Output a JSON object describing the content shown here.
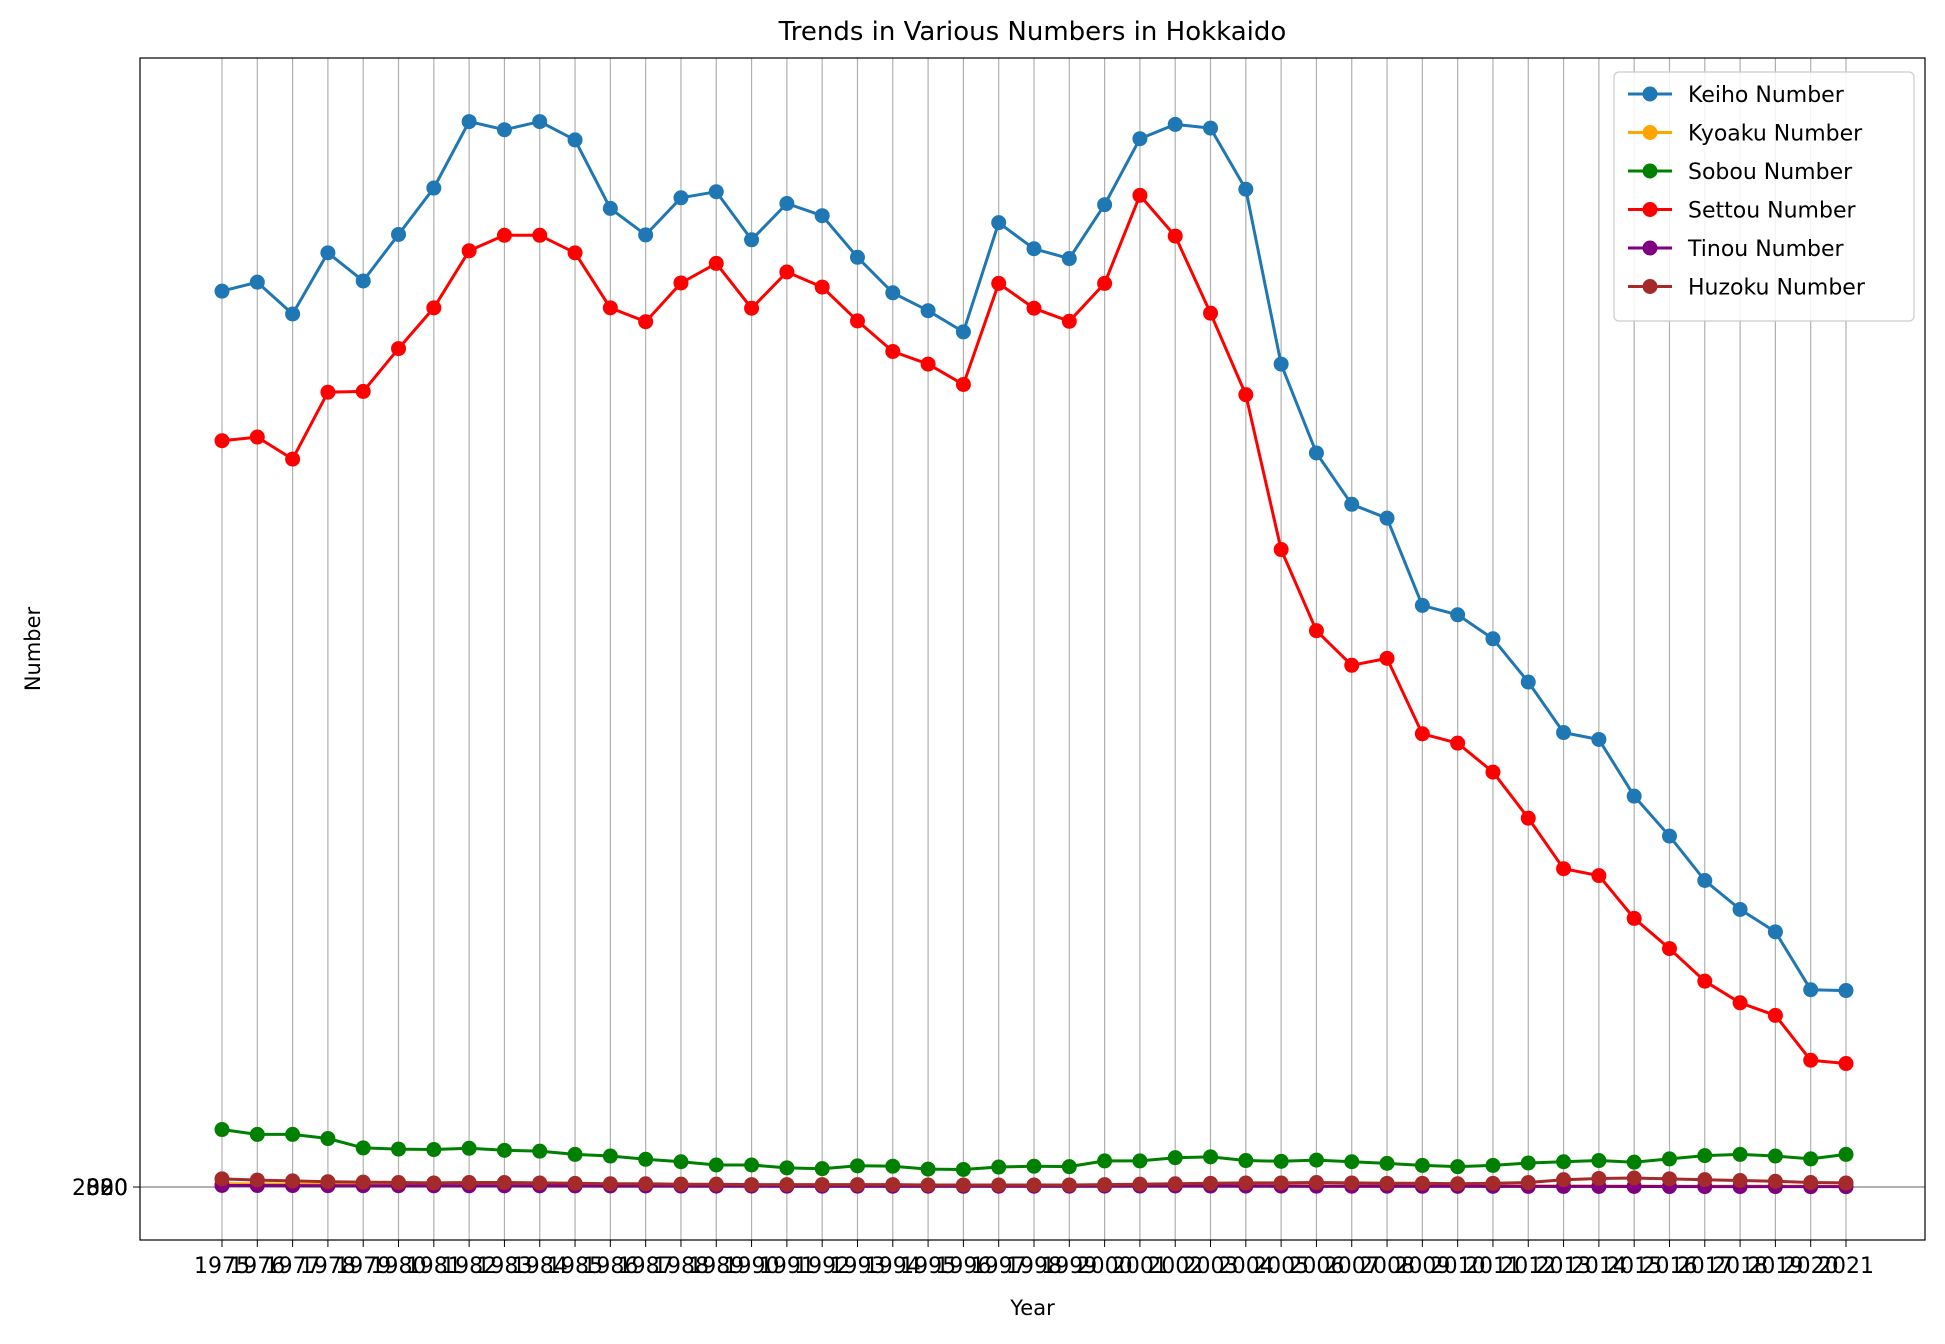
{
  "chart_data": {
    "type": "line",
    "title": "Trends in Various Numbers in Hokkaido",
    "xlabel": "Year",
    "ylabel": "Number",
    "x": [
      1975,
      1976,
      1977,
      1978,
      1979,
      1980,
      1981,
      1982,
      1983,
      1984,
      1985,
      1986,
      1987,
      1988,
      1989,
      1990,
      1991,
      1992,
      1993,
      1994,
      1995,
      1996,
      1997,
      1998,
      1999,
      2000,
      2001,
      2002,
      2003,
      2004,
      2005,
      2006,
      2007,
      2008,
      2009,
      2010,
      2011,
      2012,
      2013,
      2014,
      2015,
      2016,
      2017,
      2018,
      2019,
      2020,
      2021
    ],
    "ylim": [
      -13000,
      277000
    ],
    "grid": "vertical",
    "legend_position": "top-right",
    "series": [
      {
        "name": "Keiho Number",
        "color": "#1f77b4",
        "values": [
          219800,
          222000,
          214200,
          229200,
          222300,
          233700,
          245100,
          261400,
          259400,
          261400,
          256900,
          240100,
          233600,
          242700,
          244200,
          232400,
          241300,
          238300,
          228100,
          219400,
          215000,
          209800,
          236600,
          230200,
          227800,
          241000,
          257200,
          260700,
          259800,
          244800,
          201900,
          180100,
          167500,
          164100,
          142700,
          140400,
          134500,
          123900,
          111500,
          109800,
          95900,
          86100,
          75200,
          68100,
          62600,
          48400,
          48200
        ]
      },
      {
        "name": "Kyoaku Number",
        "color": "#ffa500",
        "values": [
          820,
          760,
          690,
          620,
          600,
          560,
          530,
          580,
          590,
          540,
          510,
          480,
          450,
          440,
          410,
          390,
          380,
          360,
          370,
          360,
          350,
          340,
          330,
          340,
          360,
          380,
          410,
          420,
          400,
          390,
          350,
          330,
          310,
          290,
          280,
          270,
          260,
          250,
          240,
          230,
          220,
          210,
          200,
          190,
          180,
          170,
          160
        ]
      },
      {
        "name": "Sobou Number",
        "color": "#008000",
        "values": [
          14100,
          12900,
          12900,
          11900,
          9600,
          9300,
          9200,
          9500,
          9000,
          8800,
          8000,
          7600,
          6800,
          6200,
          5400,
          5400,
          4700,
          4500,
          5200,
          5100,
          4400,
          4300,
          4900,
          5100,
          5000,
          6400,
          6400,
          7200,
          7400,
          6500,
          6300,
          6600,
          6200,
          5800,
          5300,
          5000,
          5300,
          5900,
          6200,
          6500,
          6100,
          6900,
          7700,
          8000,
          7600,
          6900,
          8000
        ]
      },
      {
        "name": "Settou Number",
        "color": "#ff0000",
        "values": [
          183100,
          184000,
          178600,
          195000,
          195200,
          205700,
          215700,
          229700,
          233500,
          233500,
          229200,
          215700,
          212300,
          221800,
          226600,
          215600,
          224500,
          220800,
          212500,
          205000,
          201900,
          196900,
          221700,
          215600,
          212400,
          221700,
          243300,
          233300,
          214400,
          194400,
          156400,
          136500,
          128000,
          129700,
          111200,
          108900,
          101800,
          90500,
          78100,
          76400,
          65900,
          58500,
          50500,
          45200,
          42100,
          31100,
          30300
        ]
      },
      {
        "name": "Tinou Number",
        "color": "#800080",
        "values": [
          380,
          360,
          350,
          330,
          320,
          310,
          300,
          300,
          290,
          280,
          270,
          260,
          250,
          240,
          230,
          220,
          210,
          200,
          210,
          200,
          190,
          180,
          190,
          200,
          210,
          220,
          240,
          250,
          240,
          230,
          220,
          210,
          200,
          190,
          180,
          170,
          160,
          150,
          150,
          140,
          130,
          120,
          110,
          100,
          100,
          90,
          90
        ]
      },
      {
        "name": "Huzoku Number",
        "color": "#a52a2a",
        "values": [
          2000,
          1700,
          1500,
          1300,
          1200,
          1100,
          1000,
          1100,
          1100,
          1000,
          900,
          800,
          800,
          700,
          700,
          600,
          600,
          600,
          600,
          600,
          500,
          500,
          500,
          500,
          500,
          600,
          700,
          800,
          900,
          1000,
          1000,
          1100,
          1000,
          900,
          900,
          800,
          900,
          1100,
          1800,
          2100,
          2200,
          2000,
          1800,
          1600,
          1400,
          1100,
          1000
        ]
      }
    ]
  }
}
